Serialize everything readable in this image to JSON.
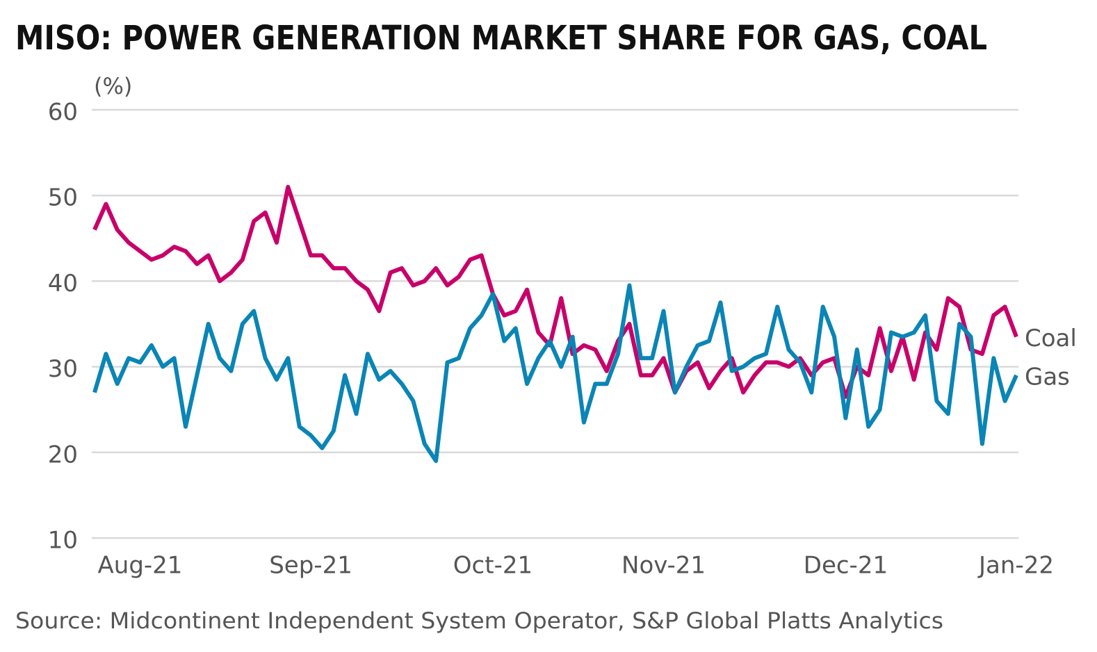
{
  "chart_data": {
    "type": "line",
    "title": "MISO: POWER GENERATION MARKET SHARE FOR GAS, COAL",
    "y_label": "(%)",
    "source": "Source: Midcontinent Independent System Operator, S&P Global Platts Analytics",
    "categories": [
      null,
      null,
      null,
      null,
      "Aug-21",
      null,
      null,
      null,
      null,
      null,
      null,
      null,
      null,
      null,
      null,
      null,
      null,
      null,
      null,
      "Sep-21",
      null,
      null,
      null,
      null,
      null,
      null,
      null,
      null,
      null,
      null,
      null,
      null,
      null,
      null,
      null,
      "Oct-21",
      null,
      null,
      null,
      null,
      null,
      null,
      null,
      null,
      null,
      null,
      null,
      null,
      null,
      null,
      "Nov-21",
      null,
      null,
      null,
      null,
      null,
      null,
      null,
      null,
      null,
      null,
      null,
      null,
      null,
      null,
      null,
      "Dec-21",
      null,
      null,
      null,
      null,
      null,
      null,
      null,
      null,
      null,
      null,
      null,
      null,
      null,
      null,
      "Jan-22"
    ],
    "series": [
      {
        "name": "Coal",
        "color": "#c8006a",
        "values": [
          46,
          49,
          46,
          44.5,
          43.5,
          42.5,
          43,
          44,
          43.5,
          42,
          43,
          40,
          41,
          42.5,
          47,
          48,
          44.5,
          51,
          47,
          43,
          43,
          41.5,
          41.5,
          40,
          39,
          36.5,
          41,
          41.5,
          39.5,
          40,
          41.5,
          39.5,
          40.5,
          42.5,
          43,
          38.5,
          36,
          36.5,
          39,
          34,
          32.5,
          38,
          31.5,
          32.5,
          32,
          29.5,
          33,
          35,
          29,
          29,
          31,
          27,
          29.5,
          30.5,
          27.5,
          29.5,
          31,
          27,
          29,
          30.5,
          30.5,
          30,
          31,
          29,
          30.5,
          31,
          26.5,
          30,
          29,
          34.5,
          29.5,
          33.5,
          28.5,
          34,
          32,
          38,
          37,
          32,
          31.5,
          36,
          37,
          33.5
        ]
      },
      {
        "name": "Gas",
        "color": "#0a85b5",
        "values": [
          27,
          31.5,
          28,
          31,
          30.5,
          32.5,
          30,
          31,
          23,
          29,
          35,
          31,
          29.5,
          35,
          36.5,
          31,
          28.5,
          31,
          23,
          22,
          20.5,
          22.5,
          29,
          24.5,
          31.5,
          28.5,
          29.5,
          28,
          26,
          21,
          19,
          30.5,
          31,
          34.5,
          36,
          38.5,
          33,
          34.5,
          28,
          31,
          33,
          30,
          33.5,
          23.5,
          28,
          28,
          31.5,
          39.5,
          31,
          31,
          36.5,
          27,
          30,
          32.5,
          33,
          37.5,
          29.5,
          30,
          31,
          31.5,
          37,
          32,
          30.5,
          27,
          37,
          33.5,
          24,
          32,
          23,
          25,
          34,
          33.5,
          34,
          36,
          26,
          24.5,
          35,
          33.5,
          21,
          31,
          26,
          29
        ]
      }
    ],
    "ylim": [
      10,
      60
    ],
    "yticks": [
      10,
      20,
      30,
      40,
      50,
      60
    ],
    "grid": true
  }
}
